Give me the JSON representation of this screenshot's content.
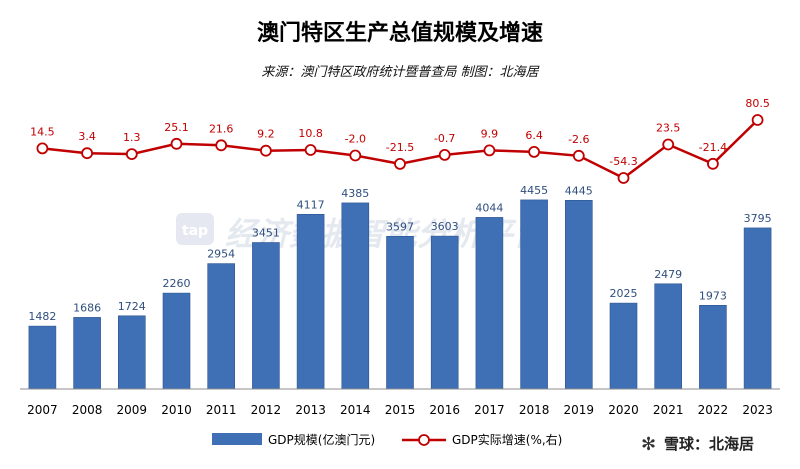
{
  "chart_data": {
    "type": "bar",
    "title": "澳门特区生产总值规模及增速",
    "subtitle": "来源：澳门特区政府统计暨普查局 制图：北海居",
    "categories": [
      "2007",
      "2008",
      "2009",
      "2010",
      "2011",
      "2012",
      "2013",
      "2014",
      "2015",
      "2016",
      "2017",
      "2018",
      "2019",
      "2020",
      "2021",
      "2022",
      "2023"
    ],
    "series": [
      {
        "name": "GDP规模(亿澳门元)",
        "type": "bar",
        "color": "#3f6fb5",
        "values": [
          1482,
          1686,
          1724,
          2260,
          2954,
          3451,
          4117,
          4385,
          3597,
          3603,
          4044,
          4455,
          4445,
          2025,
          2479,
          1973,
          3795
        ]
      },
      {
        "name": "GDP实际增速(%,右)",
        "type": "line",
        "color": "#c00000",
        "values": [
          14.5,
          3.4,
          1.3,
          25.1,
          21.6,
          9.2,
          10.8,
          -2.0,
          -21.5,
          -0.7,
          9.9,
          6.4,
          -2.6,
          -54.3,
          23.5,
          -21.4,
          80.5
        ]
      }
    ],
    "value_labels": {
      "bar": [
        "1482",
        "1686",
        "1724",
        "2260",
        "2954",
        "3451",
        "4117",
        "4385",
        "3597",
        "3603",
        "4044",
        "4455",
        "4445",
        "2025",
        "2479",
        "1973",
        "3795"
      ],
      "line": [
        "14.5",
        "3.4",
        "1.3",
        "25.1",
        "21.6",
        "9.2",
        "10.8",
        "-2.0",
        "-21.5",
        "-0.7",
        "9.9",
        "6.4",
        "-2.6",
        "-54.3",
        "23.5",
        "-21.4",
        "80.5"
      ]
    },
    "ylim_left": [
      0,
      4500
    ],
    "ylim_right": [
      -60,
      90
    ],
    "grid": false,
    "legend_position": "bottom"
  },
  "watermark": {
    "logo_text": "tap",
    "center_text": "经济数据智能分析平台",
    "corner_brand": "雪球：北海居"
  }
}
